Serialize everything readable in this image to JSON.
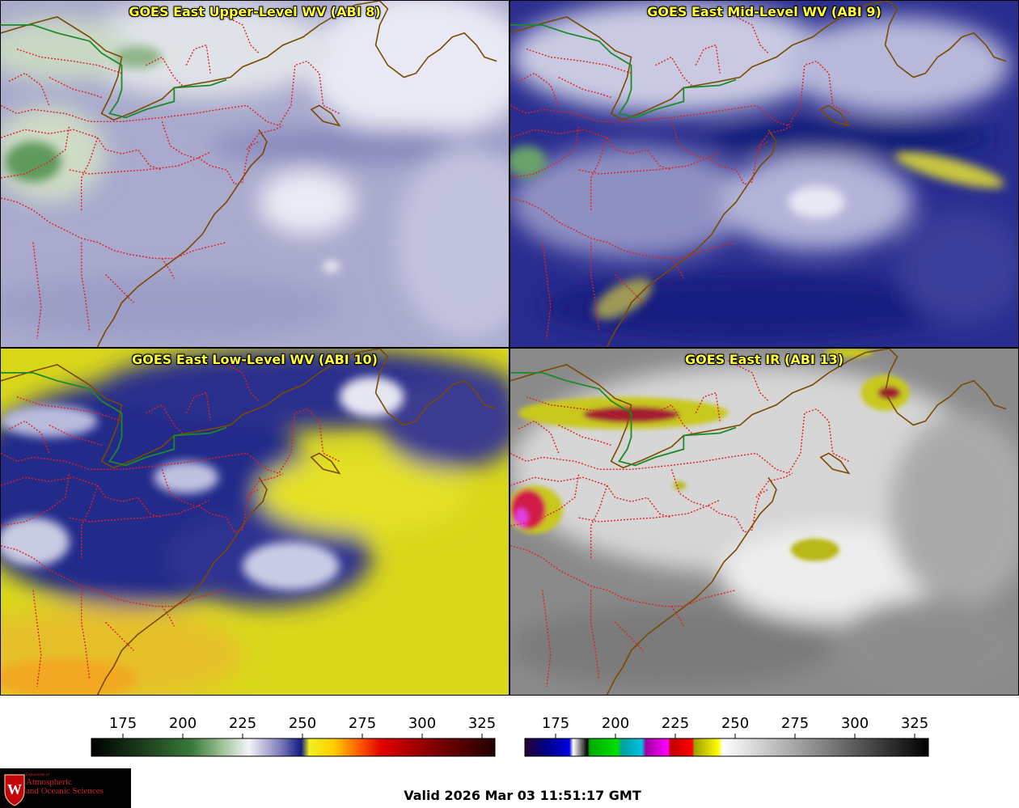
{
  "panels": {
    "upper": {
      "title": "GOES East Upper-Level WV (ABI 8)"
    },
    "mid": {
      "title": "GOES East Mid-Level WV (ABI 9)"
    },
    "low": {
      "title": "GOES East Low-Level WV (ABI 10)"
    },
    "ir": {
      "title": "GOES East IR (ABI 13)"
    }
  },
  "colorbar_wv": {
    "ticks": [
      "175",
      "200",
      "225",
      "250",
      "275",
      "300",
      "325"
    ]
  },
  "colorbar_ir": {
    "ticks": [
      "175",
      "200",
      "225",
      "250",
      "275",
      "300",
      "325"
    ]
  },
  "logo": {
    "line1": "Department of",
    "line2": "Atmospheric",
    "line3": "and Oceanic Sciences"
  },
  "valid_time": "Valid 2026 Mar 03 11:51:17 GMT",
  "colors": {
    "title": "#ffff33",
    "state_borders": "#e02020",
    "coast": "#7a4a00",
    "canada_border": "#1a8a2a"
  }
}
